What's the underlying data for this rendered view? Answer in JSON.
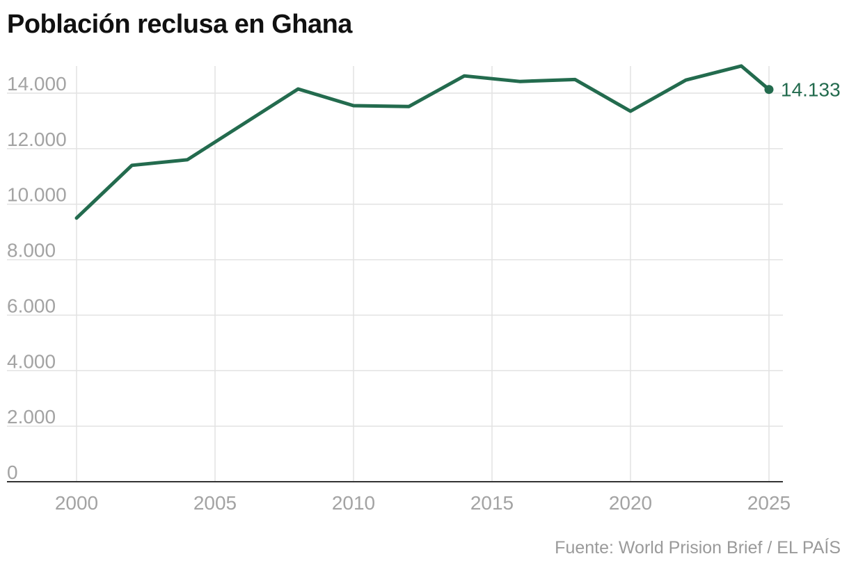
{
  "title": "Población reclusa en Ghana",
  "source": "Fuente: World Prision Brief / EL PAÍS",
  "colors": {
    "line": "#236b4e",
    "grid": "#e2e2e2",
    "axis": "#333333",
    "tick_text": "#a3a3a3",
    "title": "#111111"
  },
  "chart_data": {
    "type": "line",
    "title": "Población reclusa en Ghana",
    "xlabel": "",
    "ylabel": "",
    "x": [
      2000,
      2002,
      2004,
      2008,
      2010,
      2012,
      2014,
      2016,
      2018,
      2020,
      2022,
      2024,
      2025
    ],
    "series": [
      {
        "values": [
          9500,
          11400,
          11600,
          14150,
          13550,
          13520,
          14620,
          14420,
          14490,
          13350,
          14470,
          14980,
          14133
        ]
      }
    ],
    "xlim": [
      2000,
      2025
    ],
    "ylim": [
      0,
      14500
    ],
    "x_ticks": [
      2000,
      2005,
      2010,
      2015,
      2020,
      2025
    ],
    "x_tick_labels": [
      "2000",
      "2005",
      "2010",
      "2015",
      "2020",
      "2025"
    ],
    "y_ticks": [
      0,
      2000,
      4000,
      6000,
      8000,
      10000,
      12000,
      14000
    ],
    "y_tick_labels": [
      "0",
      "2.000",
      "4.000",
      "6.000",
      "8.000",
      "10.000",
      "12.000",
      "14.000"
    ],
    "grid": true,
    "end_label": "14.133"
  }
}
